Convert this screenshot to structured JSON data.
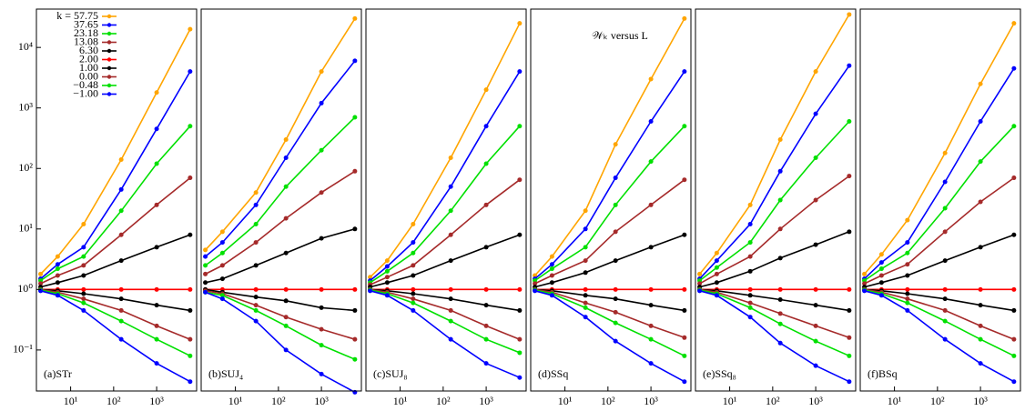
{
  "chart_data": [
    {
      "type": "line",
      "title": "(a)STr",
      "xscale": "log",
      "yscale": "log",
      "xlim": [
        1.6,
        8500
      ],
      "ylim": [
        0.021,
        43000
      ],
      "xticks": [
        {
          "value": 10,
          "label": "10¹"
        },
        {
          "value": 100,
          "label": "10²"
        },
        {
          "value": 1000,
          "label": "10³"
        }
      ],
      "yticks": [
        {
          "value": 0.1,
          "label": "10⁻¹"
        },
        {
          "value": 1,
          "label": "10⁰"
        },
        {
          "value": 10,
          "label": "10¹"
        },
        {
          "value": 100,
          "label": "10²"
        },
        {
          "value": 1000,
          "label": "10³"
        },
        {
          "value": 10000,
          "label": "10⁴"
        }
      ],
      "x": [
        2,
        5,
        20,
        150,
        1000,
        6000
      ],
      "series": [
        {
          "name": "k = 57.75",
          "color": "#ffa500",
          "values": [
            1.8,
            3.5,
            12,
            140,
            1800,
            20000
          ]
        },
        {
          "name": "37.65",
          "color": "#0000ff",
          "values": [
            1.5,
            2.6,
            5,
            45,
            450,
            4000
          ]
        },
        {
          "name": "23.18",
          "color": "#00e000",
          "values": [
            1.4,
            2.2,
            3.5,
            20,
            120,
            500
          ]
        },
        {
          "name": "13.08",
          "color": "#a52a2a",
          "values": [
            1.25,
            1.7,
            2.5,
            8,
            25,
            70
          ]
        },
        {
          "name": "6.30",
          "color": "#000000",
          "values": [
            1.1,
            1.3,
            1.7,
            3,
            5,
            8
          ]
        },
        {
          "name": "2.00",
          "color": "#ff0000",
          "values": [
            1,
            1,
            1,
            1,
            1,
            1
          ]
        },
        {
          "name": "1.00",
          "color": "#000000",
          "values": [
            1,
            0.95,
            0.85,
            0.7,
            0.55,
            0.45
          ]
        },
        {
          "name": "0.00",
          "color": "#a52a2a",
          "values": [
            1,
            0.9,
            0.7,
            0.45,
            0.25,
            0.15
          ]
        },
        {
          "name": "−0.48",
          "color": "#00e000",
          "values": [
            0.98,
            0.85,
            0.6,
            0.3,
            0.15,
            0.08
          ]
        },
        {
          "name": "−1.00",
          "color": "#0000ff",
          "values": [
            0.95,
            0.8,
            0.45,
            0.15,
            0.06,
            0.03
          ]
        }
      ]
    },
    {
      "type": "line",
      "title": "(b)SUJ₄",
      "xscale": "log",
      "yscale": "log",
      "xlim": [
        1.6,
        8500
      ],
      "ylim": [
        0.021,
        43000
      ],
      "xticks": [
        {
          "value": 10,
          "label": "10¹"
        },
        {
          "value": 100,
          "label": "10²"
        },
        {
          "value": 1000,
          "label": "10³"
        }
      ],
      "x": [
        2,
        5,
        30,
        150,
        1000,
        6000
      ],
      "series": [
        {
          "color": "#ffa500",
          "values": [
            4.5,
            9,
            40,
            300,
            4000,
            30000
          ]
        },
        {
          "color": "#0000ff",
          "values": [
            3.5,
            6,
            25,
            150,
            1200,
            6000
          ]
        },
        {
          "color": "#00e000",
          "values": [
            2.5,
            4,
            12,
            50,
            200,
            700
          ]
        },
        {
          "color": "#a52a2a",
          "values": [
            1.8,
            2.5,
            6,
            15,
            40,
            90
          ]
        },
        {
          "color": "#000000",
          "values": [
            1.3,
            1.5,
            2.5,
            4,
            7,
            10
          ]
        },
        {
          "color": "#ff0000",
          "values": [
            1,
            1,
            1,
            1,
            1,
            1
          ]
        },
        {
          "color": "#000000",
          "values": [
            1,
            0.9,
            0.75,
            0.65,
            0.5,
            0.45
          ]
        },
        {
          "color": "#a52a2a",
          "values": [
            0.95,
            0.85,
            0.55,
            0.35,
            0.22,
            0.15
          ]
        },
        {
          "color": "#00e000",
          "values": [
            0.9,
            0.8,
            0.45,
            0.25,
            0.12,
            0.07
          ]
        },
        {
          "color": "#0000ff",
          "values": [
            0.9,
            0.7,
            0.3,
            0.1,
            0.04,
            0.02
          ]
        }
      ]
    },
    {
      "type": "line",
      "title": "(c)SUJ₈",
      "xscale": "log",
      "yscale": "log",
      "xlim": [
        1.6,
        8500
      ],
      "ylim": [
        0.021,
        43000
      ],
      "xticks": [
        {
          "value": 10,
          "label": "10¹"
        },
        {
          "value": 100,
          "label": "10²"
        },
        {
          "value": 1000,
          "label": "10³"
        }
      ],
      "x": [
        2,
        5,
        20,
        150,
        1000,
        6000
      ],
      "series": [
        {
          "color": "#ffa500",
          "values": [
            1.6,
            3,
            12,
            150,
            2000,
            25000
          ]
        },
        {
          "color": "#0000ff",
          "values": [
            1.4,
            2.4,
            6,
            50,
            500,
            4000
          ]
        },
        {
          "color": "#00e000",
          "values": [
            1.3,
            2,
            4,
            20,
            120,
            500
          ]
        },
        {
          "color": "#a52a2a",
          "values": [
            1.2,
            1.6,
            2.5,
            8,
            25,
            65
          ]
        },
        {
          "color": "#000000",
          "values": [
            1.1,
            1.3,
            1.7,
            3,
            5,
            8
          ]
        },
        {
          "color": "#ff0000",
          "values": [
            1,
            1,
            1,
            1,
            1,
            1
          ]
        },
        {
          "color": "#000000",
          "values": [
            1,
            0.95,
            0.85,
            0.7,
            0.55,
            0.45
          ]
        },
        {
          "color": "#a52a2a",
          "values": [
            1,
            0.9,
            0.7,
            0.45,
            0.25,
            0.15
          ]
        },
        {
          "color": "#00e000",
          "values": [
            0.98,
            0.85,
            0.6,
            0.3,
            0.15,
            0.09
          ]
        },
        {
          "color": "#0000ff",
          "values": [
            0.95,
            0.8,
            0.45,
            0.15,
            0.06,
            0.035
          ]
        }
      ]
    },
    {
      "type": "line",
      "title": "(d)SSq",
      "annotation": "𝒲ₖ versus L",
      "xscale": "log",
      "yscale": "log",
      "xlim": [
        1.6,
        8500
      ],
      "ylim": [
        0.021,
        43000
      ],
      "xticks": [
        {
          "value": 10,
          "label": "10¹"
        },
        {
          "value": 100,
          "label": "10²"
        },
        {
          "value": 1000,
          "label": "10³"
        }
      ],
      "x": [
        2,
        5,
        30,
        150,
        1000,
        6000
      ],
      "series": [
        {
          "color": "#ffa500",
          "values": [
            1.7,
            3.5,
            20,
            250,
            3000,
            30000
          ]
        },
        {
          "color": "#0000ff",
          "values": [
            1.5,
            2.6,
            10,
            70,
            600,
            4000
          ]
        },
        {
          "color": "#00e000",
          "values": [
            1.4,
            2.2,
            5,
            25,
            130,
            500
          ]
        },
        {
          "color": "#a52a2a",
          "values": [
            1.25,
            1.7,
            3,
            9,
            25,
            65
          ]
        },
        {
          "color": "#000000",
          "values": [
            1.1,
            1.3,
            1.9,
            3,
            5,
            8
          ]
        },
        {
          "color": "#ff0000",
          "values": [
            1,
            1,
            1,
            1,
            1,
            1
          ]
        },
        {
          "color": "#000000",
          "values": [
            1,
            0.95,
            0.8,
            0.7,
            0.55,
            0.45
          ]
        },
        {
          "color": "#a52a2a",
          "values": [
            1,
            0.9,
            0.6,
            0.42,
            0.25,
            0.16
          ]
        },
        {
          "color": "#00e000",
          "values": [
            0.98,
            0.85,
            0.5,
            0.28,
            0.15,
            0.08
          ]
        },
        {
          "color": "#0000ff",
          "values": [
            0.95,
            0.8,
            0.35,
            0.14,
            0.06,
            0.03
          ]
        }
      ]
    },
    {
      "type": "line",
      "title": "(e)SSq₈",
      "xscale": "log",
      "yscale": "log",
      "xlim": [
        1.6,
        8500
      ],
      "ylim": [
        0.021,
        43000
      ],
      "xticks": [
        {
          "value": 10,
          "label": "10¹"
        },
        {
          "value": 100,
          "label": "10²"
        },
        {
          "value": 1000,
          "label": "10³"
        }
      ],
      "x": [
        2,
        5,
        30,
        150,
        1000,
        6000
      ],
      "series": [
        {
          "color": "#ffa500",
          "values": [
            1.8,
            4,
            25,
            300,
            4000,
            35000
          ]
        },
        {
          "color": "#0000ff",
          "values": [
            1.5,
            3,
            12,
            90,
            800,
            5000
          ]
        },
        {
          "color": "#00e000",
          "values": [
            1.4,
            2.3,
            6,
            30,
            150,
            600
          ]
        },
        {
          "color": "#a52a2a",
          "values": [
            1.25,
            1.8,
            3.5,
            10,
            30,
            75
          ]
        },
        {
          "color": "#000000",
          "values": [
            1.1,
            1.3,
            2,
            3.3,
            5.5,
            9
          ]
        },
        {
          "color": "#ff0000",
          "values": [
            1,
            1,
            1,
            1,
            1,
            1
          ]
        },
        {
          "color": "#000000",
          "values": [
            1,
            0.95,
            0.8,
            0.68,
            0.55,
            0.45
          ]
        },
        {
          "color": "#a52a2a",
          "values": [
            1,
            0.9,
            0.6,
            0.4,
            0.25,
            0.16
          ]
        },
        {
          "color": "#00e000",
          "values": [
            0.98,
            0.85,
            0.5,
            0.27,
            0.14,
            0.08
          ]
        },
        {
          "color": "#0000ff",
          "values": [
            0.95,
            0.8,
            0.35,
            0.13,
            0.055,
            0.03
          ]
        }
      ]
    },
    {
      "type": "line",
      "title": "(f)BSq",
      "xscale": "log",
      "yscale": "log",
      "xlim": [
        1.6,
        8500
      ],
      "ylim": [
        0.021,
        43000
      ],
      "xticks": [
        {
          "value": 10,
          "label": "10¹"
        },
        {
          "value": 100,
          "label": "10²"
        },
        {
          "value": 1000,
          "label": "10³"
        }
      ],
      "x": [
        2,
        5,
        20,
        150,
        1000,
        6000
      ],
      "series": [
        {
          "color": "#ffa500",
          "values": [
            1.8,
            3.8,
            14,
            180,
            2500,
            25000
          ]
        },
        {
          "color": "#0000ff",
          "values": [
            1.5,
            2.8,
            6,
            60,
            600,
            4500
          ]
        },
        {
          "color": "#00e000",
          "values": [
            1.4,
            2.2,
            4,
            22,
            130,
            500
          ]
        },
        {
          "color": "#a52a2a",
          "values": [
            1.25,
            1.7,
            2.6,
            9,
            28,
            70
          ]
        },
        {
          "color": "#000000",
          "values": [
            1.1,
            1.3,
            1.7,
            3,
            5,
            8
          ]
        },
        {
          "color": "#ff0000",
          "values": [
            1,
            1,
            1,
            1,
            1,
            1
          ]
        },
        {
          "color": "#000000",
          "values": [
            1,
            0.95,
            0.85,
            0.7,
            0.55,
            0.45
          ]
        },
        {
          "color": "#a52a2a",
          "values": [
            1,
            0.9,
            0.7,
            0.45,
            0.25,
            0.15
          ]
        },
        {
          "color": "#00e000",
          "values": [
            0.98,
            0.85,
            0.6,
            0.3,
            0.15,
            0.08
          ]
        },
        {
          "color": "#0000ff",
          "values": [
            0.95,
            0.8,
            0.45,
            0.15,
            0.06,
            0.03
          ]
        }
      ]
    }
  ]
}
